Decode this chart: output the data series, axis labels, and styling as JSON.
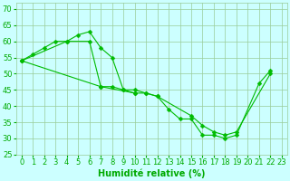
{
  "xlabel": "Humidité relative (%)",
  "xlim": [
    -0.5,
    23.5
  ],
  "ylim": [
    25,
    72
  ],
  "yticks": [
    25,
    30,
    35,
    40,
    45,
    50,
    55,
    60,
    65,
    70
  ],
  "xticks": [
    0,
    1,
    2,
    3,
    4,
    5,
    6,
    7,
    8,
    9,
    10,
    11,
    12,
    13,
    14,
    15,
    16,
    17,
    18,
    19,
    20,
    21,
    22,
    23
  ],
  "line_color": "#00BB00",
  "bg_color": "#CCFFFF",
  "grid_color": "#99CC99",
  "lines": [
    {
      "x": [
        0,
        1,
        2,
        3,
        4,
        5,
        6,
        7,
        8,
        9,
        10,
        11,
        12,
        13,
        14,
        15,
        16,
        17,
        18,
        19,
        21,
        22
      ],
      "y": [
        54,
        56,
        58,
        60,
        60,
        62,
        63,
        58,
        55,
        45,
        45,
        44,
        43,
        39,
        36,
        36,
        31,
        31,
        30,
        31,
        47,
        51
      ]
    },
    {
      "x": [
        0,
        4,
        6,
        7,
        8,
        9,
        10,
        11,
        12,
        15,
        16,
        17,
        18,
        19,
        22
      ],
      "y": [
        54,
        60,
        60,
        46,
        46,
        45,
        44,
        44,
        43,
        37,
        34,
        32,
        31,
        32,
        50
      ]
    },
    {
      "x": [
        0,
        7,
        10
      ],
      "y": [
        54,
        46,
        44
      ]
    }
  ],
  "marker": "D",
  "marker_size": 2.5,
  "line_width": 0.8,
  "font_color": "#00AA00",
  "xlabel_fontsize": 7,
  "tick_fontsize": 6
}
